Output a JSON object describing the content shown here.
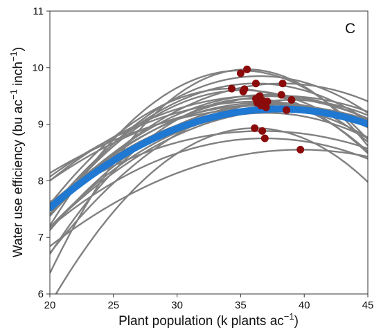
{
  "chart_data": {
    "type": "line",
    "panel_label": "C",
    "xlabel": "Plant population (k plants ac",
    "xlabel_sup": "−1",
    "xlabel_end": ")",
    "ylabel_parts": [
      "Water use efficiency (bu ac",
      "−1",
      " inch",
      "−1",
      ")"
    ],
    "xlim": [
      20,
      45
    ],
    "ylim": [
      6,
      11
    ],
    "x_ticks": [
      20,
      25,
      30,
      35,
      40,
      45
    ],
    "y_ticks": [
      6,
      7,
      8,
      9,
      10,
      11
    ],
    "grid": false,
    "colors": {
      "site_curves": "#808080",
      "mean_curve": "#1f78d1",
      "optimum_points": "#8b0a0a",
      "axes": "#333333"
    },
    "site_curves": [
      {
        "xopt": 35.0,
        "ymax": 9.95,
        "c": 0.0122
      },
      {
        "xopt": 35.5,
        "ymax": 9.97,
        "c": 0.015
      },
      {
        "xopt": 36.5,
        "ymax": 9.85,
        "c": 0.009
      },
      {
        "xopt": 38.3,
        "ymax": 9.72,
        "c": 0.007
      },
      {
        "xopt": 36.2,
        "ymax": 9.72,
        "c": 0.0085
      },
      {
        "xopt": 34.3,
        "ymax": 9.63,
        "c": 0.01
      },
      {
        "xopt": 35.2,
        "ymax": 9.6,
        "c": 0.0095
      },
      {
        "xopt": 38.2,
        "ymax": 9.5,
        "c": 0.006
      },
      {
        "xopt": 37.1,
        "ymax": 9.52,
        "c": 0.007
      },
      {
        "xopt": 36.5,
        "ymax": 9.5,
        "c": 0.0055
      },
      {
        "xopt": 39.0,
        "ymax": 9.43,
        "c": 0.0075
      },
      {
        "xopt": 36.3,
        "ymax": 9.4,
        "c": 0.005
      },
      {
        "xopt": 36.8,
        "ymax": 9.38,
        "c": 0.0065
      },
      {
        "xopt": 37.3,
        "ymax": 9.35,
        "c": 0.0045
      },
      {
        "xopt": 36.6,
        "ymax": 9.33,
        "c": 0.008
      },
      {
        "xopt": 37.6,
        "ymax": 9.3,
        "c": 0.0055
      },
      {
        "xopt": 38.6,
        "ymax": 9.25,
        "c": 0.006
      },
      {
        "xopt": 36.9,
        "ymax": 9.28,
        "c": 0.004
      },
      {
        "xopt": 36.1,
        "ymax": 8.93,
        "c": 0.012
      },
      {
        "xopt": 36.7,
        "ymax": 8.88,
        "c": 0.0045
      },
      {
        "xopt": 36.9,
        "ymax": 8.75,
        "c": 0.0055
      },
      {
        "xopt": 39.7,
        "ymax": 8.55,
        "c": 0.0044
      },
      {
        "xopt": 37.0,
        "ymax": 9.2,
        "c": 0.007
      },
      {
        "xopt": 35.8,
        "ymax": 9.45,
        "c": 0.011
      }
    ],
    "mean_curve": {
      "xopt": 38.0,
      "ymax": 9.27,
      "c": 0.0054
    },
    "optimum_points": [
      {
        "x": 35.0,
        "y": 9.9
      },
      {
        "x": 35.5,
        "y": 9.97
      },
      {
        "x": 34.3,
        "y": 9.63
      },
      {
        "x": 35.2,
        "y": 9.58
      },
      {
        "x": 35.3,
        "y": 9.62
      },
      {
        "x": 36.2,
        "y": 9.72
      },
      {
        "x": 38.3,
        "y": 9.72
      },
      {
        "x": 38.2,
        "y": 9.52
      },
      {
        "x": 39.0,
        "y": 9.43
      },
      {
        "x": 36.2,
        "y": 9.45
      },
      {
        "x": 36.5,
        "y": 9.5
      },
      {
        "x": 36.3,
        "y": 9.38
      },
      {
        "x": 36.7,
        "y": 9.42
      },
      {
        "x": 36.9,
        "y": 9.36
      },
      {
        "x": 37.1,
        "y": 9.4
      },
      {
        "x": 36.6,
        "y": 9.33
      },
      {
        "x": 37.0,
        "y": 9.3
      },
      {
        "x": 38.6,
        "y": 9.25
      },
      {
        "x": 36.1,
        "y": 8.93
      },
      {
        "x": 36.7,
        "y": 8.88
      },
      {
        "x": 36.9,
        "y": 8.75
      },
      {
        "x": 39.7,
        "y": 8.55
      }
    ]
  }
}
